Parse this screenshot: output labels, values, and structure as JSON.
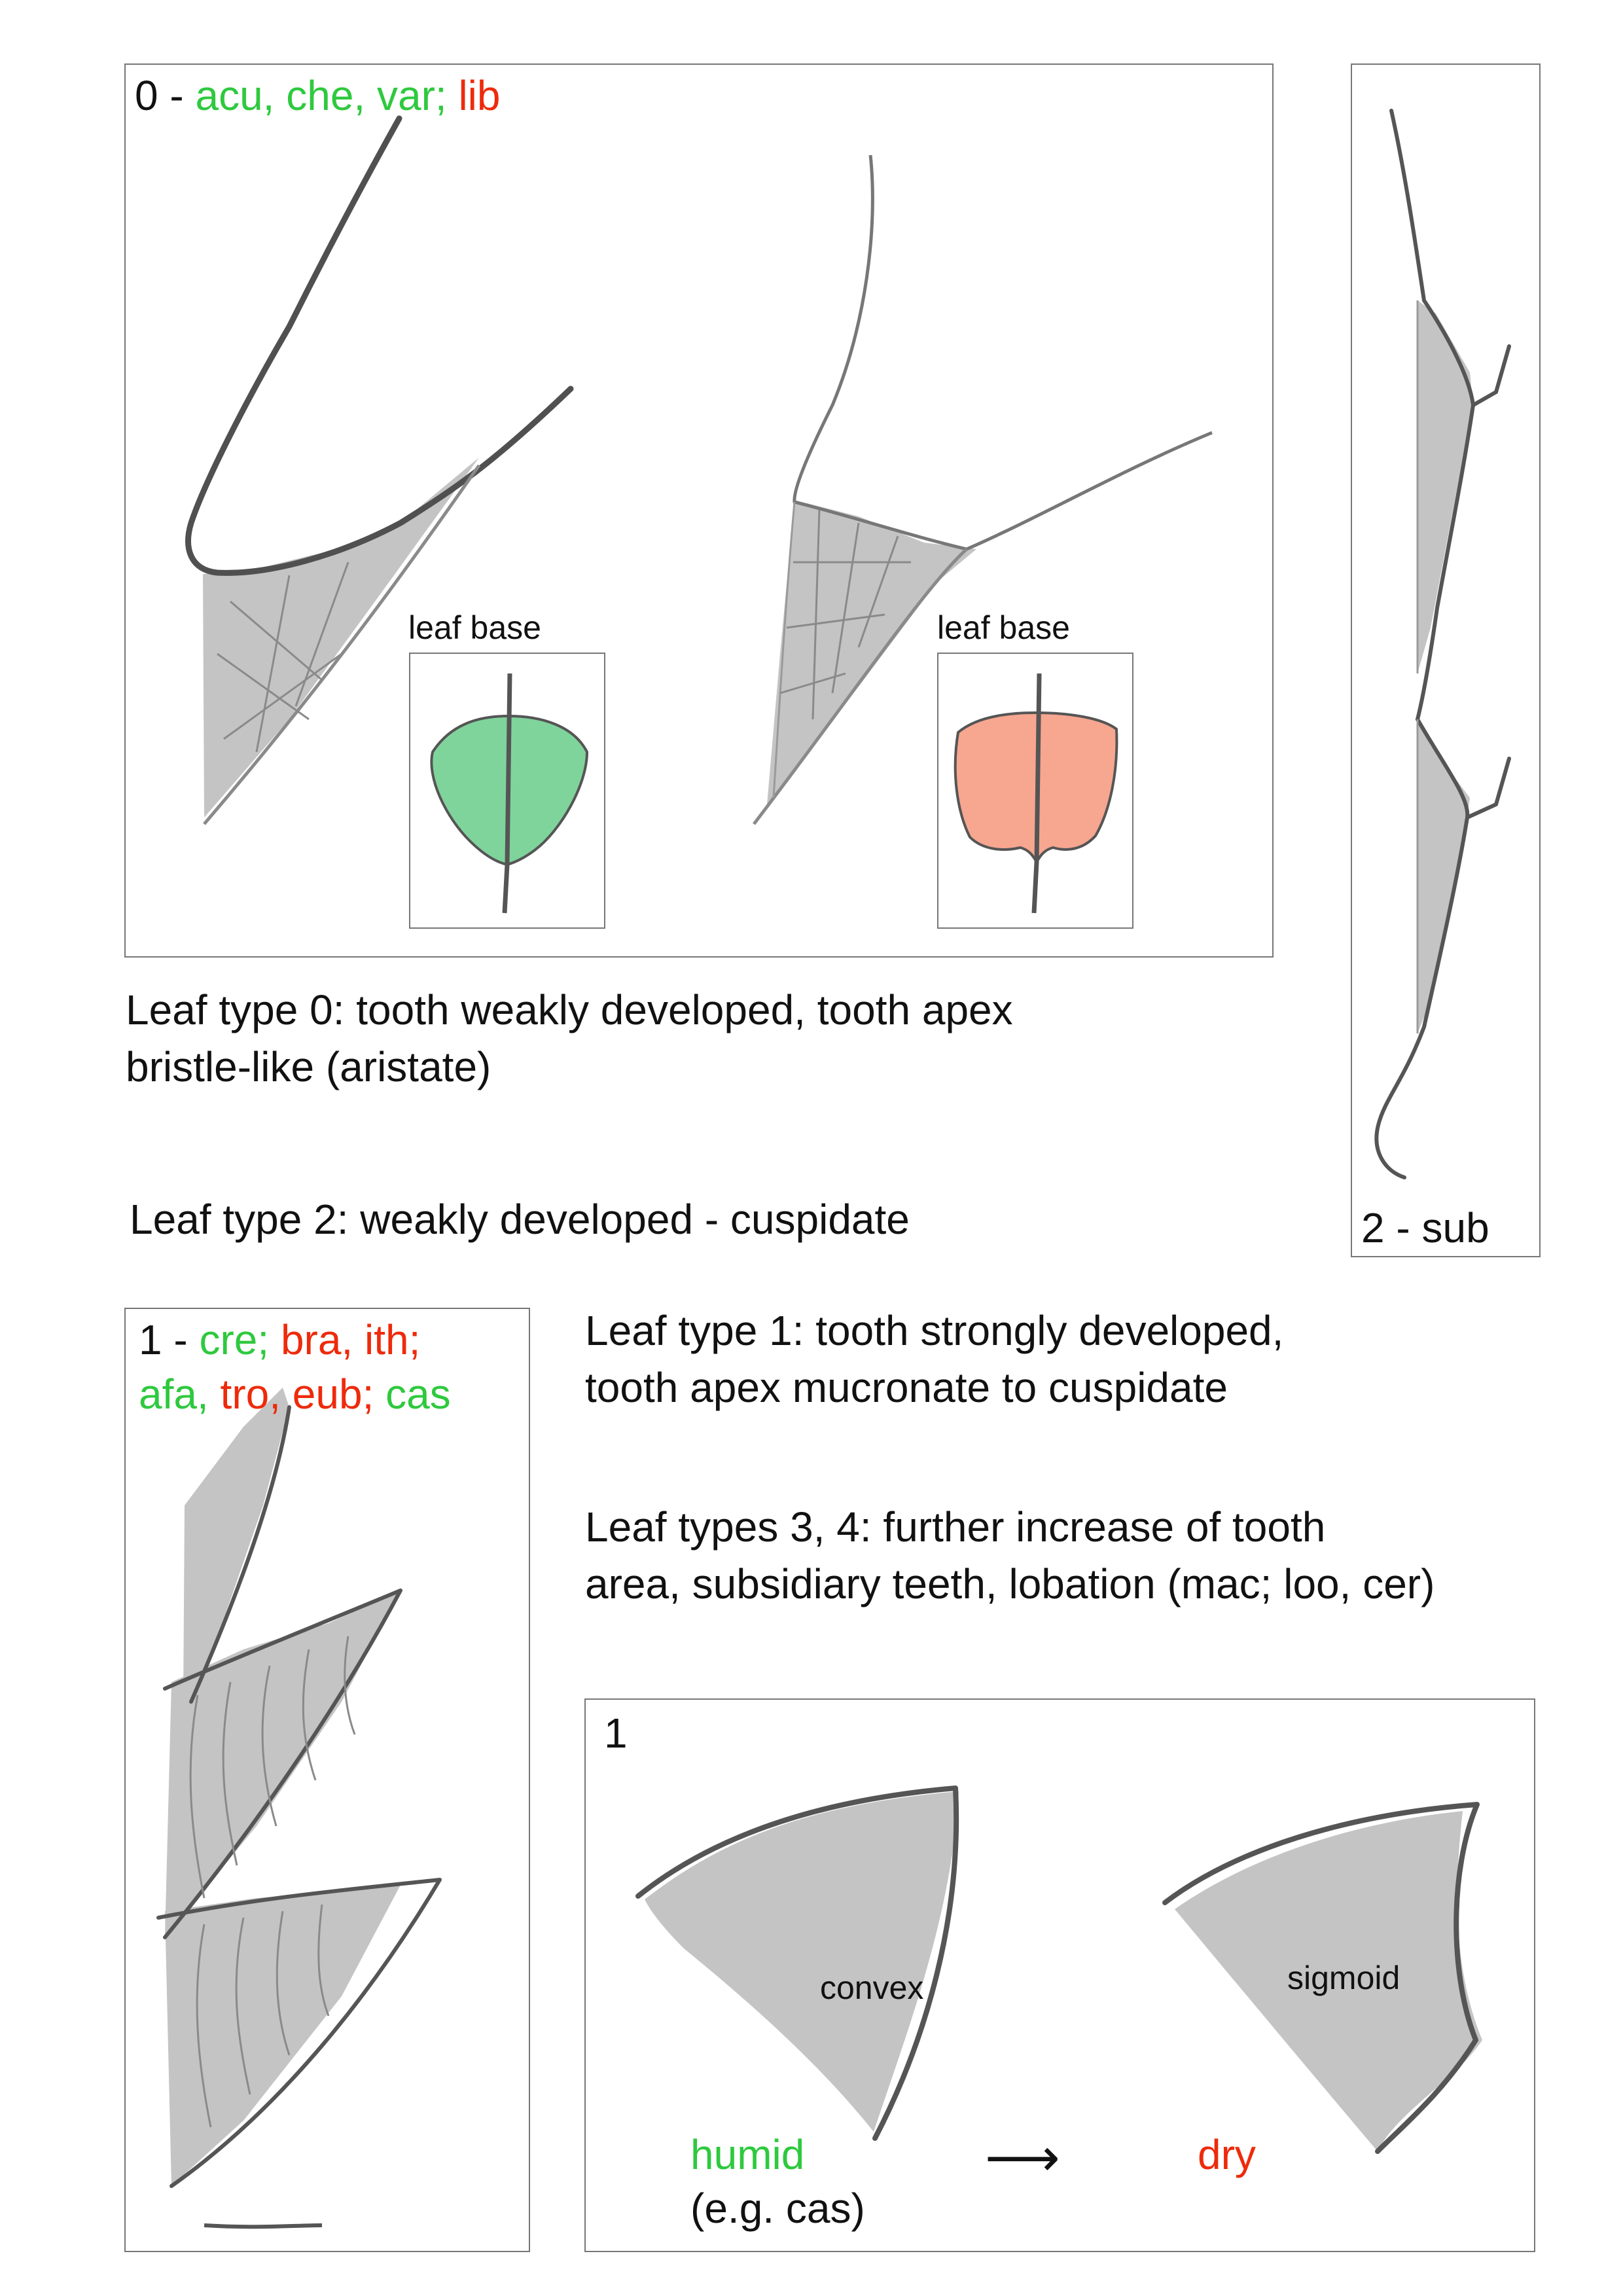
{
  "panel0": {
    "id": "0",
    "sep": " - ",
    "codes": [
      {
        "t": "acu, che, var; ",
        "c": "green"
      },
      {
        "t": "lib",
        "c": "red"
      }
    ],
    "inset_left": {
      "caption": "leaf base",
      "color": "#7fd49c"
    },
    "inset_right": {
      "caption": "leaf base",
      "color": "#f7a690"
    }
  },
  "panel2": {
    "label": "2 - sub"
  },
  "panel1a": {
    "id": "1",
    "sep": " - ",
    "codes": [
      {
        "t": "cre; ",
        "c": "green"
      },
      {
        "t": "bra, ith;",
        "c": "red"
      },
      {
        "t": "\n",
        "c": "none"
      },
      {
        "t": "afa, ",
        "c": "green"
      },
      {
        "t": "tro, eub; ",
        "c": "red"
      },
      {
        "t": "cas",
        "c": "green"
      }
    ]
  },
  "panel1b": {
    "label": "1",
    "shape_left": "convex",
    "shape_right": "sigmoid",
    "humid": "humid",
    "humid_note": "(e.g. cas)",
    "arrow": "⟶",
    "dry": "dry"
  },
  "texts": {
    "type0_line1": "Leaf type 0: tooth weakly developed, tooth apex",
    "type0_line2": "bristle-like (aristate)",
    "type2": "Leaf type 2: weakly developed - cuspidate",
    "type1_line1": "Leaf type 1: tooth strongly developed,",
    "type1_line2": "tooth apex mucronate to cuspidate",
    "type34_line1": "Leaf types 3, 4: further increase of tooth",
    "type34_line2": "area, subsidiary teeth, lobation (mac; loo, cer)"
  },
  "colors": {
    "green": "#2ec93e",
    "red": "#ee2a0b",
    "tooth_fill": "#c4c4c4",
    "pencil": "#5a5a5a"
  }
}
